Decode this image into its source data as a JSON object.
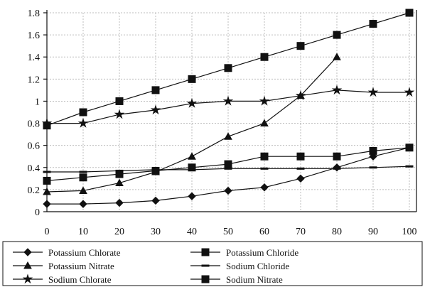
{
  "chart_data": {
    "type": "line",
    "title": "",
    "xlabel": "",
    "ylabel": "",
    "x": [
      0,
      10,
      20,
      30,
      40,
      50,
      60,
      70,
      80,
      90,
      100
    ],
    "x_tick_labels": [
      "0",
      "10",
      "20",
      "30",
      "40",
      "50",
      "60",
      "70",
      "80",
      "90",
      "100"
    ],
    "y_tick_labels": [
      "0",
      "0.2",
      "0.4",
      "0.6",
      "0.8",
      "1",
      "1.2",
      "1.4",
      "1.6",
      "1.8"
    ],
    "y_ticks": [
      0,
      0.2,
      0.4,
      0.6,
      0.8,
      1.0,
      1.2,
      1.4,
      1.6,
      1.8
    ],
    "xlim": [
      0,
      100
    ],
    "ylim": [
      0,
      1.8
    ],
    "grid": true,
    "legend_position": "bottom",
    "series": [
      {
        "name": "Potassium Chlorate",
        "marker": "diamond",
        "values": [
          0.07,
          0.07,
          0.08,
          0.1,
          0.14,
          0.19,
          0.22,
          0.3,
          0.4,
          0.5,
          0.58
        ]
      },
      {
        "name": "Potassium Chloride",
        "marker": "square",
        "values": [
          0.28,
          0.31,
          0.34,
          0.37,
          0.4,
          0.43,
          0.5,
          0.5,
          0.5,
          0.55,
          0.58
        ]
      },
      {
        "name": "Potassium Nitrate",
        "marker": "triangle",
        "values": [
          0.18,
          0.19,
          0.26,
          0.36,
          0.5,
          0.68,
          0.8,
          1.05,
          1.4,
          null,
          null
        ]
      },
      {
        "name": "Sodium Chloride",
        "marker": "dash",
        "values": [
          0.36,
          0.36,
          0.37,
          0.38,
          0.38,
          0.39,
          0.39,
          0.39,
          0.39,
          0.4,
          0.41
        ]
      },
      {
        "name": "Sodium Chlorate",
        "marker": "star",
        "values": [
          0.8,
          0.8,
          0.88,
          0.92,
          0.98,
          1.0,
          1.0,
          1.05,
          1.1,
          1.08,
          1.08
        ]
      },
      {
        "name": "Sodium Nitrate",
        "marker": "square",
        "values": [
          0.78,
          0.9,
          1.0,
          1.1,
          1.2,
          1.3,
          1.4,
          1.5,
          1.6,
          1.7,
          1.8
        ]
      }
    ]
  },
  "legend": {
    "left_column": [
      "Potassium Chlorate",
      "Potassium Nitrate",
      "Sodium Chlorate"
    ],
    "right_column": [
      "Potassium Chloride",
      "Sodium Chloride",
      "Sodium Nitrate"
    ]
  }
}
